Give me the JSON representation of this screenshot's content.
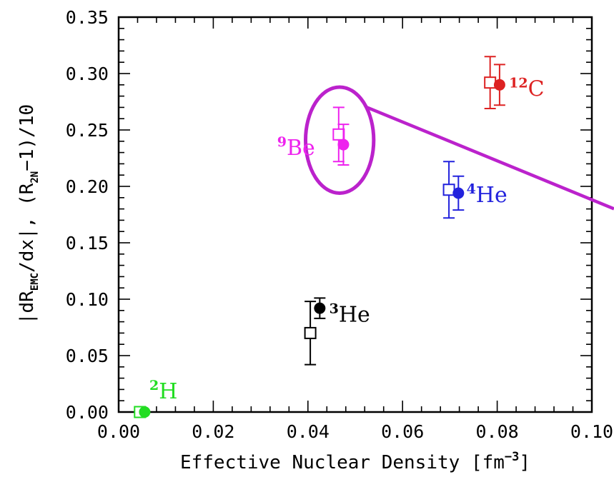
{
  "chart_data": {
    "type": "scatter",
    "xlabel": "Effective Nuclear Density [fm",
    "xlabel_unit_exp": "−3",
    "xlabel_close": "]",
    "ylabel": {
      "part1": "|dR",
      "part1_sub": "EMC",
      "part2": "/dx|,  (R",
      "part2_sub": "2N",
      "part3": "−1)/10"
    },
    "xlim": [
      0.0,
      0.1
    ],
    "ylim": [
      0.0,
      0.35
    ],
    "x_ticks": [
      "0.00",
      "0.02",
      "0.04",
      "0.06",
      "0.08",
      "0.10"
    ],
    "x_tick_values": [
      0.0,
      0.02,
      0.04,
      0.06,
      0.08,
      0.1
    ],
    "y_ticks": [
      "0.00",
      "0.05",
      "0.10",
      "0.15",
      "0.20",
      "0.25",
      "0.30",
      "0.35"
    ],
    "y_tick_values": [
      0.0,
      0.05,
      0.1,
      0.15,
      0.2,
      0.25,
      0.3,
      0.35
    ],
    "grid": false,
    "series": [
      {
        "marker": "open-square",
        "points": [
          {
            "x": 0.0045,
            "y": 0.0,
            "err": 0.0,
            "color": "#22dd22"
          },
          {
            "x": 0.0405,
            "y": 0.07,
            "err": 0.028,
            "color": "#000000"
          },
          {
            "x": 0.0465,
            "y": 0.246,
            "err": 0.024,
            "color": "#ee22ee"
          },
          {
            "x": 0.0698,
            "y": 0.197,
            "err": 0.025,
            "color": "#2222dd"
          },
          {
            "x": 0.0785,
            "y": 0.292,
            "err": 0.023,
            "color": "#dd2222"
          }
        ]
      },
      {
        "marker": "filled-circle",
        "points": [
          {
            "x": 0.0055,
            "y": 0.0,
            "err": 0.0,
            "color": "#22dd22"
          },
          {
            "x": 0.0425,
            "y": 0.092,
            "err": 0.009,
            "color": "#000000"
          },
          {
            "x": 0.0475,
            "y": 0.237,
            "err": 0.018,
            "color": "#ee22ee"
          },
          {
            "x": 0.0718,
            "y": 0.194,
            "err": 0.015,
            "color": "#2222dd"
          },
          {
            "x": 0.0805,
            "y": 0.29,
            "err": 0.018,
            "color": "#dd2222"
          }
        ]
      }
    ],
    "annotations": [
      {
        "mass": "2",
        "element": "H",
        "color": "#22dd22",
        "x": 0.0065,
        "y": 0.012
      },
      {
        "mass": "3",
        "element": "He",
        "color": "#000000",
        "x": 0.0445,
        "y": 0.08
      },
      {
        "mass": "9",
        "element": "Be",
        "color": "#ee22ee",
        "x": 0.0335,
        "y": 0.228
      },
      {
        "mass": "4",
        "element": "He",
        "color": "#2222dd",
        "x": 0.0735,
        "y": 0.186
      },
      {
        "mass": "12",
        "element": "C",
        "color": "#dd2222",
        "x": 0.0825,
        "y": 0.28
      }
    ],
    "highlight": {
      "color": "#bb22cc",
      "center": {
        "x": 0.0467,
        "y": 0.241
      },
      "radius_x": 0.0072,
      "radius_y": 0.047,
      "line_from": {
        "x": 0.0525,
        "y": 0.27
      },
      "line_to_edge": {
        "x": 0.1,
        "y": 0.189
      }
    }
  }
}
